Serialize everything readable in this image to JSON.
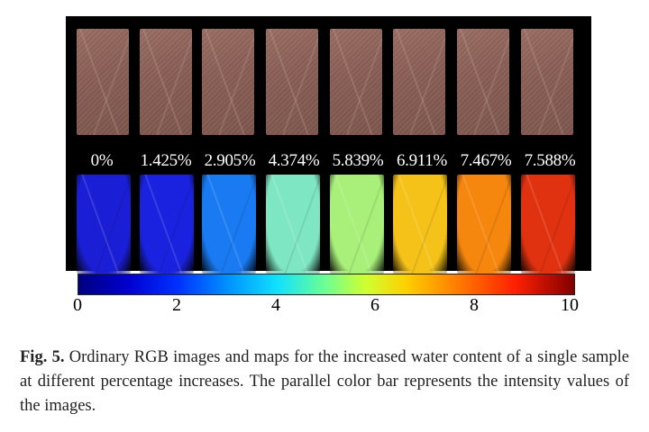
{
  "figure": {
    "labels": [
      "0%",
      "1.425%",
      "2.905%",
      "4.374%",
      "5.839%",
      "6.911%",
      "7.467%",
      "7.588%"
    ],
    "map_colors": [
      "#1a1fd6",
      "#1a22e0",
      "#1a7af2",
      "#7fe6c4",
      "#a8f07a",
      "#f5c21a",
      "#f5860e",
      "#e03210"
    ]
  },
  "colorbar": {
    "ticks": [
      "0",
      "2",
      "4",
      "6",
      "8",
      "10"
    ],
    "range": [
      0,
      10
    ],
    "colormap": "jet"
  },
  "caption": {
    "label": "Fig. 5.",
    "text": "Ordinary RGB images and maps for the increased water content of a single sample at different percentage increases. The parallel color bar represents the intensity values of the images."
  }
}
